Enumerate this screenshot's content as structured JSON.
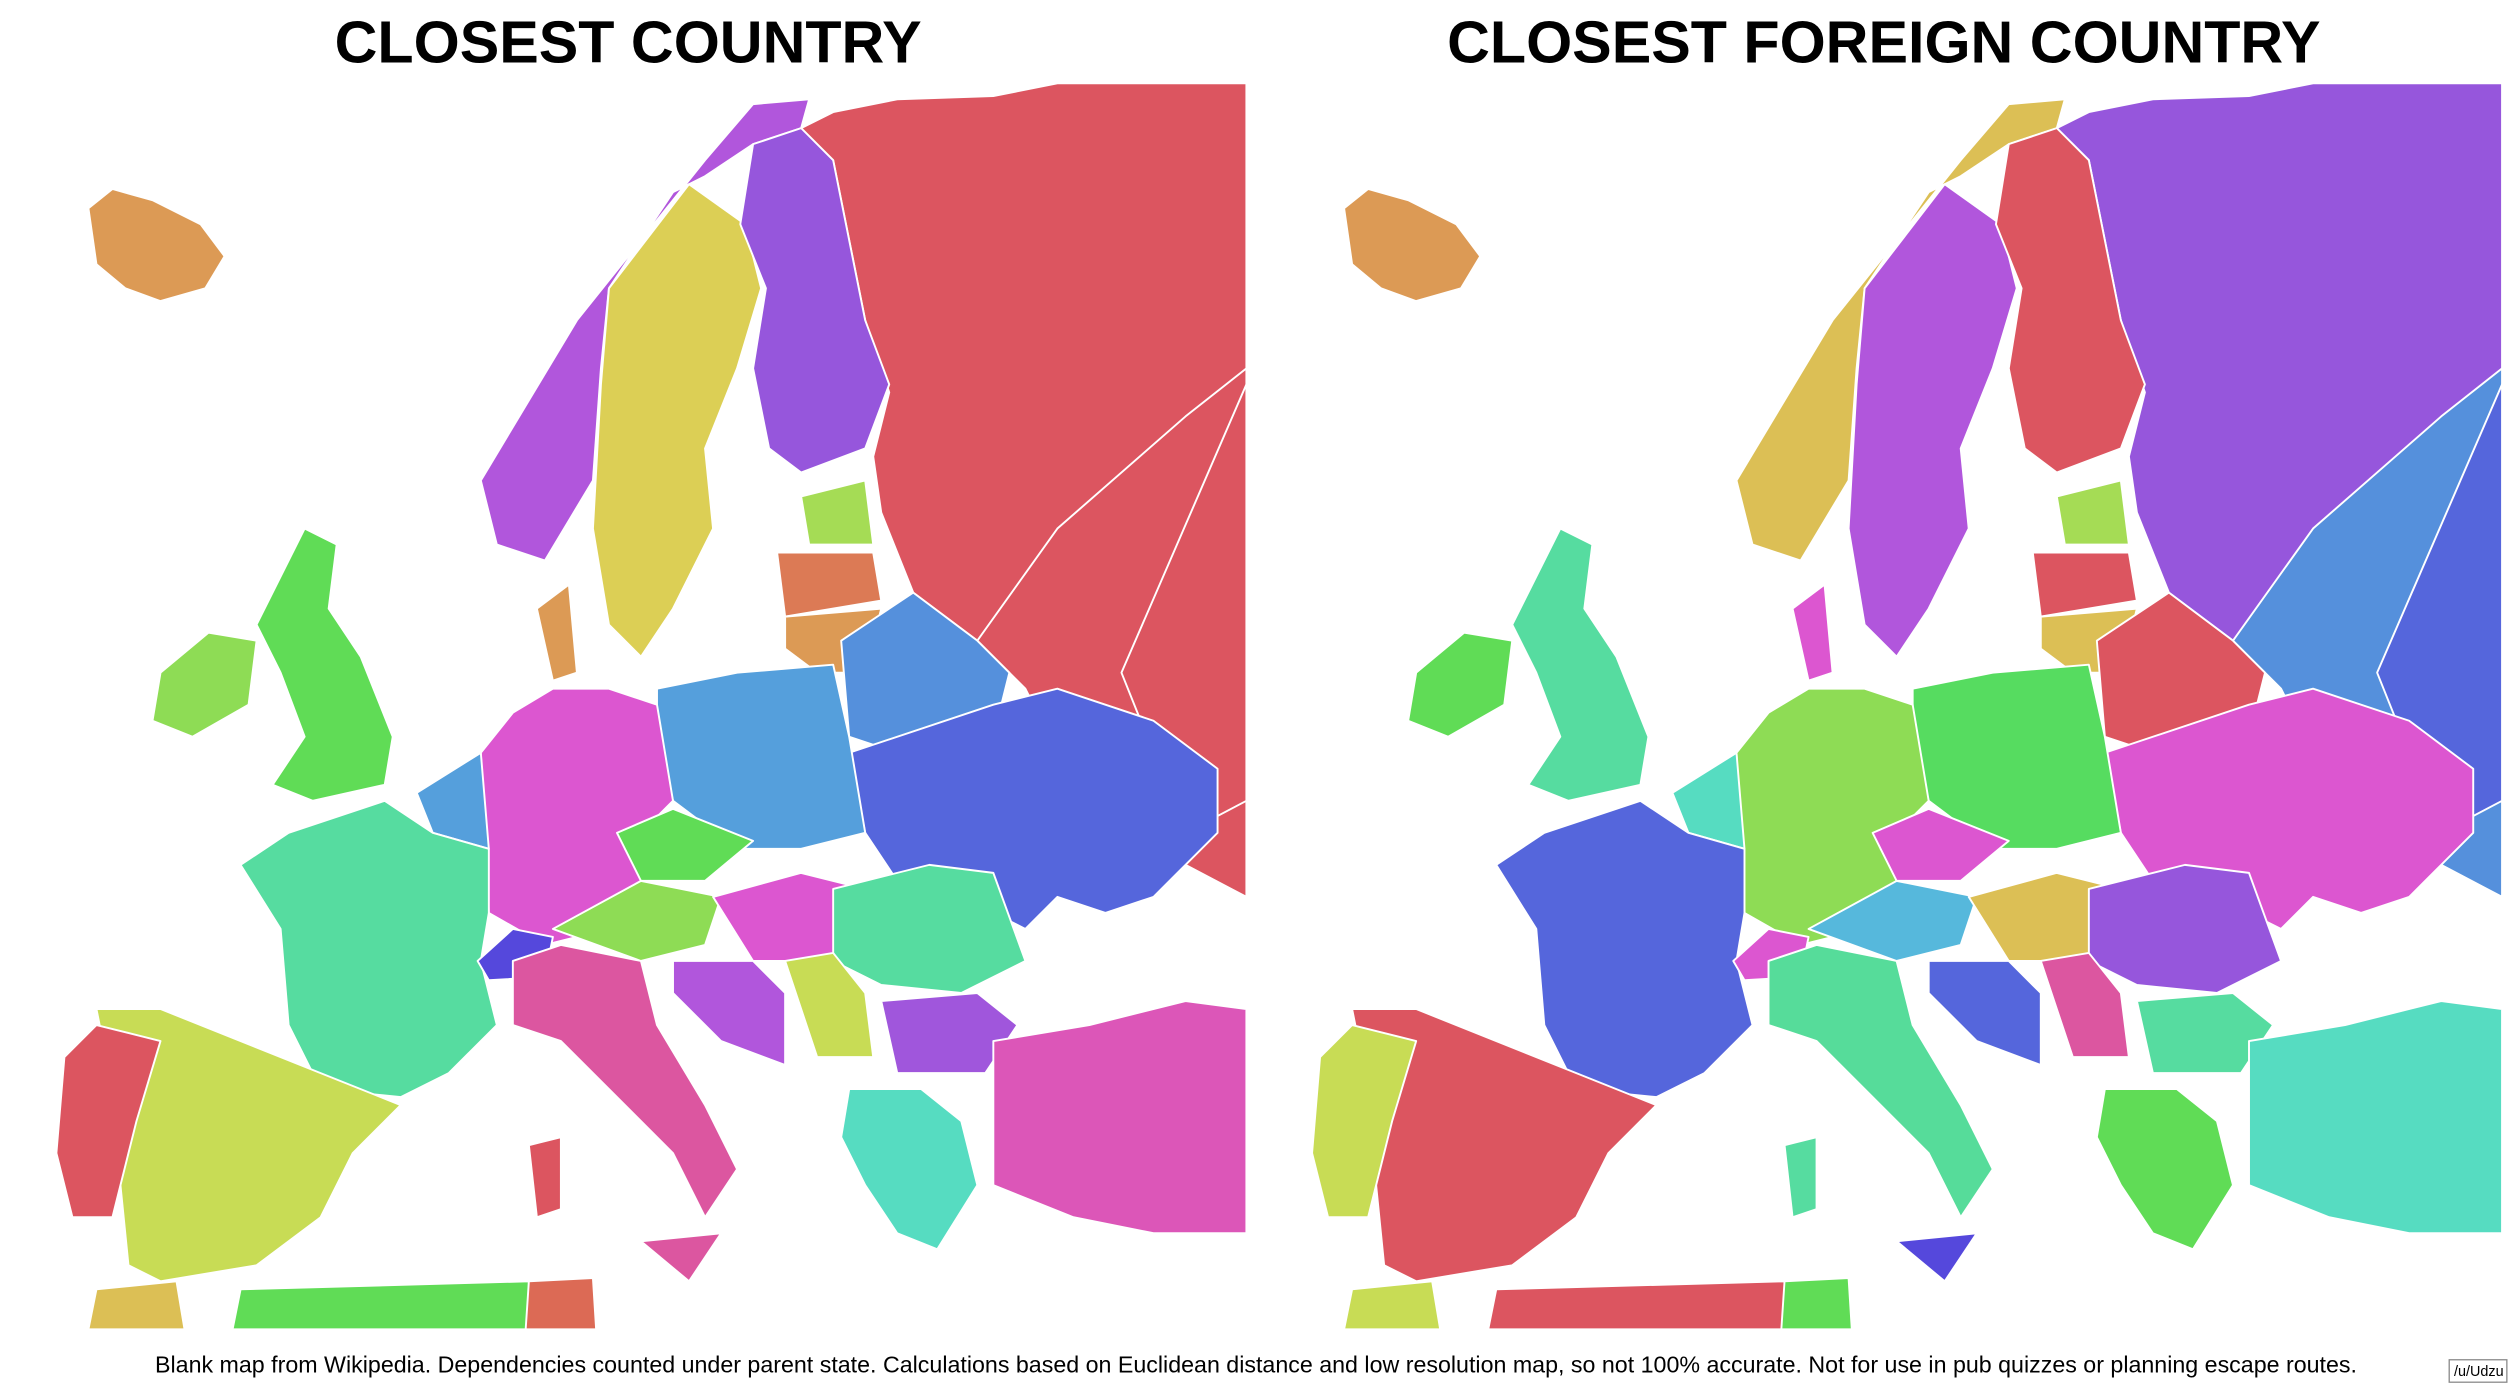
{
  "titles": {
    "left": "CLOSEST COUNTRY",
    "right": "CLOSEST FOREIGN COUNTRY"
  },
  "caption": "Blank map from Wikipedia. Dependencies counted under parent state. Calculations based on Euclidean distance and low resolution map, so not 100% accurate. Not for use in pub quizzes or planning escape routes.",
  "credit": "/u/Udzu"
}
